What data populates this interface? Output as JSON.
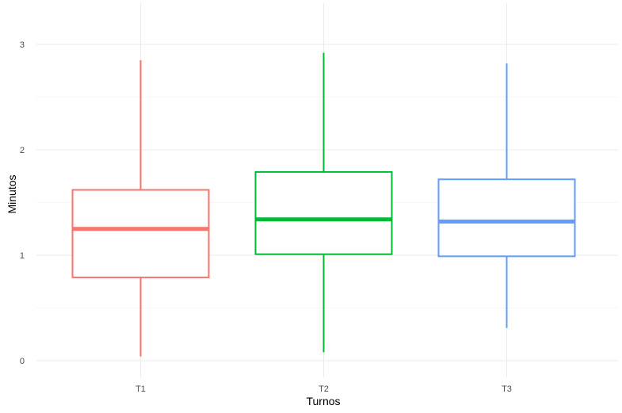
{
  "chart_data": {
    "type": "boxplot",
    "xlabel": "Turnos",
    "ylabel": "Minutos",
    "ylim": [
      -0.05,
      3.3
    ],
    "yticks": [
      0,
      1,
      2,
      3
    ],
    "grid": true,
    "legend": "none",
    "categories": [
      "T1",
      "T2",
      "T3"
    ],
    "boxes": [
      {
        "category": "T1",
        "min": 0.04,
        "q1": 0.79,
        "median": 1.25,
        "q3": 1.62,
        "max": 2.85,
        "color": "#F8766D"
      },
      {
        "category": "T2",
        "min": 0.08,
        "q1": 1.01,
        "median": 1.34,
        "q3": 1.79,
        "max": 2.92,
        "color": "#00BA38"
      },
      {
        "category": "T3",
        "min": 0.31,
        "q1": 0.99,
        "median": 1.32,
        "q3": 1.72,
        "max": 2.82,
        "color": "#619CFF"
      }
    ]
  }
}
